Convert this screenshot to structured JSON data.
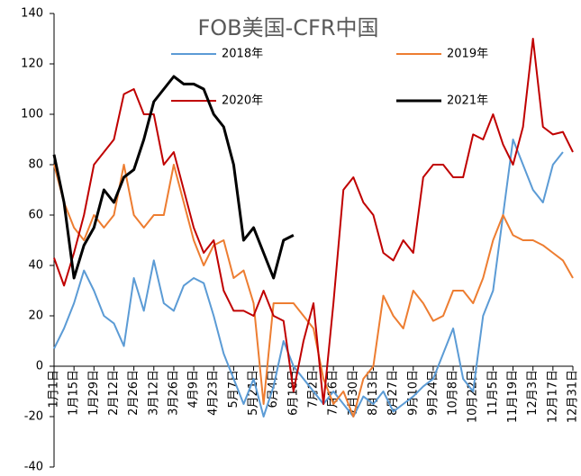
{
  "chart_data": {
    "type": "line",
    "title": "FOB美国-CFR中国",
    "categories": [
      "1月1日",
      null,
      "1月15日",
      null,
      "1月29日",
      null,
      "2月12日",
      null,
      "2月26日",
      null,
      "3月12日",
      null,
      "3月26日",
      null,
      "4月9日",
      null,
      "4月23日",
      null,
      "5月7日",
      null,
      "5月21日",
      null,
      "6月4日",
      null,
      "6月18日",
      null,
      "7月2日",
      null,
      "7月16日",
      null,
      "7月30日",
      null,
      "8月13日",
      null,
      "8月27日",
      null,
      "9月10日",
      null,
      "9月24日",
      null,
      "10月8日",
      null,
      "10月22日",
      null,
      "11月5日",
      null,
      "11月19日",
      null,
      "12月3日",
      null,
      "12月17日",
      null,
      "12月31日"
    ],
    "series": [
      {
        "name": "2018年",
        "color": "#5b9bd5",
        "values": [
          7,
          15,
          25,
          38,
          30,
          20,
          17,
          8,
          35,
          22,
          42,
          25,
          22,
          32,
          35,
          33,
          20,
          5,
          -5,
          -15,
          -5,
          -20,
          -8,
          10,
          0,
          -5,
          -10,
          -15,
          -10,
          -15,
          -20,
          -12,
          -15,
          -10,
          -18,
          -15,
          -12,
          -8,
          -5,
          5,
          15,
          -5,
          -10,
          20,
          30,
          60,
          90,
          80,
          70,
          65,
          80,
          85,
          null
        ]
      },
      {
        "name": "2019年",
        "color": "#ed7d31",
        "values": [
          80,
          65,
          55,
          50,
          60,
          55,
          60,
          80,
          60,
          55,
          60,
          60,
          80,
          65,
          50,
          40,
          48,
          50,
          35,
          38,
          25,
          -15,
          25,
          25,
          25,
          20,
          15,
          -5,
          -15,
          -10,
          -20,
          -5,
          0,
          28,
          20,
          15,
          30,
          25,
          18,
          20,
          30,
          30,
          25,
          35,
          50,
          60,
          52,
          50,
          50,
          48,
          45,
          42,
          35
        ]
      },
      {
        "name": "2020年",
        "color": "#c00000",
        "values": [
          43,
          32,
          45,
          60,
          80,
          85,
          90,
          108,
          110,
          100,
          100,
          80,
          85,
          70,
          55,
          45,
          50,
          30,
          22,
          22,
          20,
          30,
          20,
          18,
          -10,
          10,
          25,
          -15,
          25,
          70,
          75,
          65,
          60,
          45,
          42,
          50,
          45,
          75,
          80,
          80,
          75,
          75,
          92,
          90,
          100,
          88,
          80,
          95,
          130,
          95,
          92,
          93,
          85
        ]
      },
      {
        "name": "2021年",
        "color": "#000000",
        "values": [
          84,
          65,
          35,
          48,
          55,
          70,
          65,
          75,
          78,
          90,
          105,
          110,
          115,
          112,
          112,
          110,
          100,
          95,
          80,
          50,
          55,
          45,
          35,
          50,
          52,
          null,
          null,
          null,
          null,
          null,
          null,
          null,
          null,
          null,
          null,
          null,
          null,
          null,
          null,
          null,
          null,
          null,
          null,
          null,
          null,
          null,
          null,
          null,
          null,
          null,
          null,
          null,
          null
        ]
      }
    ],
    "ylim": [
      -40,
      140
    ],
    "yticks": [
      -40,
      -20,
      0,
      20,
      40,
      60,
      80,
      100,
      120,
      140
    ]
  }
}
